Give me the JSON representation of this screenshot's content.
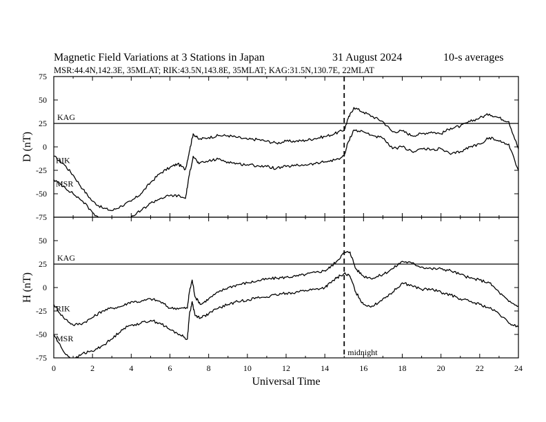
{
  "header": {
    "title": "Magnetic Field Variations at 3 Stations in Japan",
    "date": "31  August  2024",
    "averaging": "10-s averages",
    "stations": "MSR:44.4N,142.3E, 35MLAT;   RIK:43.5N,143.8E, 35MLAT;   KAG:31.5N,130.7E, 22MLAT"
  },
  "chart_data": [
    {
      "type": "line",
      "ylabel": "D (nT)",
      "xlabel": "",
      "xlim": [
        0,
        24
      ],
      "ylim": [
        -75,
        75
      ],
      "xticks": [
        0,
        2,
        4,
        6,
        8,
        10,
        12,
        14,
        16,
        18,
        20,
        22,
        24
      ],
      "yticks": [
        -75,
        -50,
        -25,
        0,
        25,
        50,
        75
      ],
      "reference_line": {
        "name": "KAG",
        "y": 25
      },
      "series": [
        {
          "name": "RIK",
          "x": [
            0,
            0.5,
            1,
            1.5,
            2,
            2.5,
            3,
            3.5,
            4,
            4.5,
            5,
            5.5,
            6,
            6.4,
            6.8,
            7.0,
            7.2,
            7.5,
            8,
            8.5,
            9,
            9.5,
            10,
            10.5,
            11,
            11.5,
            12,
            12.5,
            13,
            13.5,
            14,
            14.5,
            15,
            15.2,
            15.5,
            16,
            16.5,
            17,
            17.5,
            18,
            18.5,
            19,
            19.5,
            20,
            20.5,
            21,
            21.5,
            22,
            22.5,
            23,
            23.5,
            24
          ],
          "y": [
            -10,
            -18,
            -30,
            -45,
            -58,
            -65,
            -68,
            -63,
            -58,
            -50,
            -38,
            -28,
            -22,
            -18,
            -24,
            -5,
            14,
            8,
            10,
            12,
            12,
            10,
            8,
            8,
            6,
            4,
            6,
            6,
            7,
            9,
            11,
            14,
            18,
            30,
            42,
            37,
            32,
            27,
            16,
            17,
            12,
            14,
            16,
            14,
            20,
            22,
            27,
            31,
            35,
            31,
            27,
            -2
          ]
        },
        {
          "name": "MSR",
          "x": [
            0,
            0.5,
            1,
            1.5,
            2,
            2.5,
            3,
            3.5,
            4,
            4.5,
            5,
            5.5,
            6,
            6.4,
            6.8,
            7.0,
            7.2,
            7.5,
            8,
            8.5,
            9,
            9.5,
            10,
            10.5,
            11,
            11.5,
            12,
            12.5,
            13,
            13.5,
            14,
            14.5,
            15,
            15.2,
            15.5,
            16,
            16.5,
            17,
            17.5,
            18,
            18.5,
            19,
            19.5,
            20,
            20.5,
            21,
            21.5,
            22,
            22.5,
            23,
            23.5,
            24
          ],
          "y": [
            -35,
            -42,
            -50,
            -58,
            -70,
            -78,
            -82,
            -80,
            -75,
            -68,
            -60,
            -55,
            -52,
            -52,
            -55,
            -30,
            -10,
            -18,
            -15,
            -13,
            -16,
            -18,
            -19,
            -20,
            -21,
            -23,
            -21,
            -20,
            -19,
            -18,
            -16,
            -14,
            -10,
            5,
            18,
            16,
            12,
            9,
            -2,
            0,
            -5,
            -2,
            -3,
            -2,
            -8,
            -5,
            0,
            3,
            10,
            6,
            3,
            -25
          ]
        }
      ]
    },
    {
      "type": "line",
      "ylabel": "H (nT)",
      "xlabel": "Universal Time",
      "xlim": [
        0,
        24
      ],
      "ylim": [
        -75,
        75
      ],
      "xticks": [
        0,
        2,
        4,
        6,
        8,
        10,
        12,
        14,
        16,
        18,
        20,
        22,
        24
      ],
      "xticklabels": [
        "0",
        "2",
        "4",
        "6",
        "8",
        "10",
        "12",
        "14",
        "16",
        "18",
        "20",
        "22",
        "24"
      ],
      "yticks": [
        -75,
        -50,
        -25,
        0,
        25,
        50,
        75
      ],
      "reference_line": {
        "name": "KAG",
        "y": 25
      },
      "annotation": {
        "text": "midnight",
        "x": 15
      },
      "series": [
        {
          "name": "RIK",
          "x": [
            0,
            0.5,
            1,
            1.5,
            2,
            2.5,
            3,
            3.5,
            4,
            4.5,
            5,
            5.5,
            6,
            6.5,
            6.9,
            7.0,
            7.15,
            7.3,
            7.6,
            8,
            8.5,
            9,
            9.5,
            10,
            10.5,
            11,
            11.5,
            12,
            12.5,
            13,
            13.5,
            14,
            14.3,
            14.6,
            15.0,
            15.3,
            15.6,
            16,
            16.5,
            17,
            17.5,
            18,
            18.5,
            19,
            19.5,
            20,
            20.5,
            21,
            21.5,
            22,
            22.5,
            23,
            23.5,
            24
          ],
          "y": [
            -18,
            -32,
            -40,
            -38,
            -32,
            -25,
            -22,
            -20,
            -15,
            -15,
            -12,
            -15,
            -22,
            -22,
            -22,
            -5,
            8,
            -10,
            -18,
            -12,
            -5,
            0,
            3,
            5,
            7,
            9,
            10,
            11,
            12,
            14,
            16,
            18,
            22,
            28,
            37,
            38,
            20,
            12,
            10,
            14,
            20,
            28,
            26,
            22,
            20,
            20,
            18,
            14,
            10,
            8,
            5,
            -5,
            -15,
            -20
          ]
        },
        {
          "name": "MSR",
          "x": [
            0,
            0.5,
            1,
            1.5,
            2,
            2.5,
            3,
            3.5,
            4,
            4.5,
            5,
            5.5,
            6,
            6.5,
            6.9,
            7.0,
            7.15,
            7.3,
            7.6,
            8,
            8.5,
            9,
            9.5,
            10,
            10.5,
            11,
            11.5,
            12,
            12.5,
            13,
            13.5,
            14,
            14.3,
            14.6,
            15.0,
            15.3,
            15.6,
            16,
            16.5,
            17,
            17.5,
            18,
            18.5,
            19,
            19.5,
            20,
            20.5,
            21,
            21.5,
            22,
            22.5,
            23,
            23.5,
            24
          ],
          "y": [
            -50,
            -68,
            -78,
            -70,
            -68,
            -62,
            -55,
            -45,
            -40,
            -38,
            -35,
            -38,
            -45,
            -50,
            -55,
            -30,
            -15,
            -30,
            -32,
            -28,
            -22,
            -18,
            -15,
            -13,
            -11,
            -10,
            -8,
            -6,
            -5,
            -3,
            -2,
            0,
            5,
            10,
            15,
            12,
            -5,
            -18,
            -20,
            -12,
            -5,
            5,
            2,
            -2,
            -2,
            -5,
            -8,
            -12,
            -15,
            -18,
            -22,
            -28,
            -38,
            -42
          ]
        }
      ]
    }
  ]
}
